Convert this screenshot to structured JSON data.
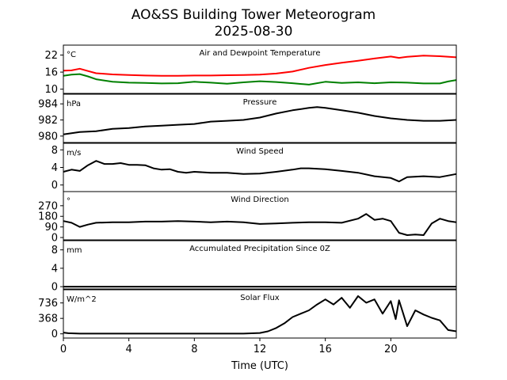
{
  "title_line1": "AO&SS Building Tower Meteorogram",
  "title_line2": "2025-08-30",
  "xlabel": "Time (UTC)",
  "xaxis": {
    "range": [
      0,
      24
    ],
    "ticks": [
      0,
      4,
      8,
      12,
      16,
      20
    ]
  },
  "colors": {
    "temperature": "#ff0000",
    "dewpoint": "#008000",
    "default": "#000000"
  },
  "chart_data": [
    {
      "type": "line",
      "title": "Air and Dewpoint Temperature",
      "unit": "°C",
      "ylim": [
        8.5,
        25.5
      ],
      "yticks": [
        10,
        16,
        22
      ],
      "series": [
        {
          "name": "Air Temperature",
          "color": "#ff0000",
          "x": [
            0,
            0.5,
            1,
            1.5,
            2,
            3,
            4,
            5,
            6,
            7,
            8,
            9,
            10,
            11,
            12,
            13,
            14,
            15,
            16,
            17,
            18,
            19,
            20,
            20.5,
            21,
            22,
            23,
            24
          ],
          "y": [
            16.5,
            16.6,
            17.2,
            16.4,
            15.6,
            15.2,
            15.0,
            14.8,
            14.7,
            14.7,
            14.8,
            14.8,
            14.9,
            15.0,
            15.1,
            15.5,
            16.2,
            17.5,
            18.5,
            19.3,
            20.0,
            20.8,
            21.5,
            21.0,
            21.4,
            21.8,
            21.6,
            21.2
          ]
        },
        {
          "name": "Dewpoint",
          "color": "#008000",
          "x": [
            0,
            0.5,
            1,
            1.5,
            2,
            3,
            4,
            5,
            6,
            7,
            8,
            9,
            10,
            11,
            12,
            13,
            14,
            15,
            16,
            17,
            18,
            19,
            20,
            21,
            22,
            23,
            23.5,
            24
          ],
          "y": [
            14.7,
            15.1,
            15.3,
            14.5,
            13.5,
            12.6,
            12.3,
            12.2,
            12.0,
            12.1,
            12.6,
            12.3,
            11.9,
            12.4,
            12.8,
            12.5,
            12.1,
            11.6,
            12.6,
            12.2,
            12.4,
            12.1,
            12.4,
            12.3,
            12.0,
            12.0,
            12.7,
            13.2
          ]
        }
      ]
    },
    {
      "type": "line",
      "title": "Pressure",
      "unit": "hPa",
      "ylim": [
        979.2,
        985.2
      ],
      "yticks": [
        980,
        982,
        984
      ],
      "series": [
        {
          "name": "Pressure",
          "color": "#000000",
          "x": [
            0,
            1,
            2,
            3,
            4,
            5,
            6,
            7,
            8,
            9,
            10,
            11,
            12,
            13,
            14,
            15,
            15.5,
            16,
            17,
            18,
            19,
            20,
            21,
            22,
            23,
            24
          ],
          "y": [
            980.2,
            980.5,
            980.6,
            980.9,
            981.0,
            981.2,
            981.3,
            981.4,
            981.5,
            981.8,
            981.9,
            982.0,
            982.3,
            982.8,
            983.2,
            983.5,
            983.6,
            983.5,
            983.2,
            982.9,
            982.5,
            982.2,
            982.0,
            981.9,
            981.9,
            982.0
          ]
        }
      ]
    },
    {
      "type": "line",
      "title": "Wind Speed",
      "unit": "m/s",
      "ylim": [
        -1.5,
        9.5
      ],
      "yticks": [
        0,
        4,
        8
      ],
      "series": [
        {
          "name": "Wind Speed",
          "color": "#000000",
          "x": [
            0,
            0.5,
            1,
            1.5,
            2,
            2.5,
            3,
            3.5,
            4,
            4.5,
            5,
            5.5,
            6,
            6.5,
            7,
            7.5,
            8,
            9,
            10,
            11,
            12,
            13,
            14,
            14.5,
            15,
            16,
            17,
            18,
            19,
            20,
            20.5,
            21,
            22,
            23,
            24
          ],
          "y": [
            3.0,
            3.5,
            3.2,
            4.5,
            5.5,
            4.8,
            4.8,
            5.0,
            4.6,
            4.6,
            4.5,
            3.8,
            3.5,
            3.6,
            3.0,
            2.8,
            3.0,
            2.8,
            2.8,
            2.5,
            2.6,
            3.0,
            3.5,
            3.8,
            3.8,
            3.6,
            3.2,
            2.8,
            2.0,
            1.6,
            0.8,
            1.8,
            2.0,
            1.8,
            2.5
          ]
        }
      ]
    },
    {
      "type": "line",
      "title": "Wind Direction",
      "unit": "°",
      "ylim": [
        -20,
        390
      ],
      "yticks": [
        0,
        90,
        180,
        270
      ],
      "series": [
        {
          "name": "Wind Direction",
          "color": "#000000",
          "x": [
            0,
            0.5,
            1,
            1.5,
            2,
            3,
            4,
            5,
            6,
            7,
            8,
            9,
            10,
            11,
            12,
            13,
            14,
            15,
            16,
            17,
            18,
            18.5,
            19,
            19.5,
            20,
            20.5,
            21,
            21.5,
            22,
            22.5,
            23,
            23.5,
            24
          ],
          "y": [
            140,
            125,
            90,
            110,
            125,
            130,
            130,
            135,
            135,
            140,
            135,
            130,
            135,
            130,
            115,
            120,
            125,
            130,
            130,
            125,
            160,
            200,
            150,
            160,
            140,
            40,
            20,
            25,
            20,
            120,
            160,
            140,
            130
          ]
        }
      ]
    },
    {
      "type": "line",
      "title": "Accumulated Precipitation Since 0Z",
      "unit": "mm",
      "ylim": [
        -0.5,
        10
      ],
      "yticks": [
        0,
        4,
        8
      ],
      "series": [
        {
          "name": "Accumulated Precipitation",
          "color": "#000000",
          "x": [
            0,
            24
          ],
          "y": [
            0,
            0
          ]
        }
      ]
    },
    {
      "type": "line",
      "title": "Solar Flux",
      "unit": "W/m^2",
      "ylim": [
        -100,
        1050
      ],
      "yticks": [
        0,
        368,
        736
      ],
      "series": [
        {
          "name": "Solar Flux",
          "color": "#000000",
          "x": [
            0,
            0.3,
            1,
            4,
            8,
            11,
            12,
            12.5,
            13,
            13.5,
            14,
            14.5,
            15,
            15.5,
            16,
            16.5,
            17,
            17.5,
            18,
            18.5,
            19,
            19.5,
            20,
            20.3,
            20.5,
            21,
            21.5,
            22,
            22.5,
            23,
            23.5,
            24
          ],
          "y": [
            30,
            15,
            5,
            5,
            5,
            5,
            20,
            60,
            140,
            250,
            400,
            480,
            560,
            700,
            820,
            700,
            860,
            620,
            900,
            740,
            820,
            480,
            780,
            350,
            800,
            180,
            560,
            460,
            380,
            320,
            90,
            60
          ]
        }
      ]
    }
  ]
}
